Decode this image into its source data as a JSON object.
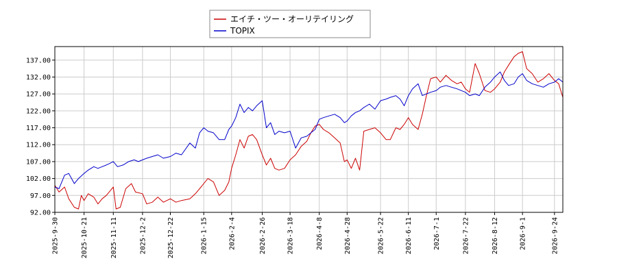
{
  "chart_data": {
    "type": "line",
    "title": "",
    "xlabel": "",
    "ylabel": "",
    "ylim": [
      92.0,
      141.0
    ],
    "y_ticks": [
      "92.00",
      "97.00",
      "102.00",
      "107.00",
      "112.00",
      "117.00",
      "122.00",
      "127.00",
      "132.00",
      "137.00"
    ],
    "x_ticks": [
      "2025-9-30",
      "2025-10-21",
      "2025-11-11",
      "2025-12-2",
      "2025-12-22",
      "2026-1-15",
      "2026-2-4",
      "2026-2-26",
      "2026-3-18",
      "2026-4-8",
      "2026-4-28",
      "2026-5-22",
      "2026-6-11",
      "2026-7-1",
      "2026-7-22",
      "2026-8-12",
      "2026-9-1",
      "2026-9-24"
    ],
    "grid": true,
    "legend_position": "top-center",
    "series": [
      {
        "name": "エイチ・ツー・オーリテイリング",
        "color": "#cc0000",
        "points": [
          [
            "2025-9-30",
            100.0
          ],
          [
            "2025-10-3",
            98.0
          ],
          [
            "2025-10-7",
            99.5
          ],
          [
            "2025-10-10",
            96.0
          ],
          [
            "2025-10-14",
            93.5
          ],
          [
            "2025-10-17",
            93.0
          ],
          [
            "2025-10-19",
            97.0
          ],
          [
            "2025-10-21",
            95.5
          ],
          [
            "2025-10-24",
            97.5
          ],
          [
            "2025-10-28",
            96.5
          ],
          [
            "2025-10-31",
            94.5
          ],
          [
            "2025-11-3",
            96.0
          ],
          [
            "2025-11-6",
            97.0
          ],
          [
            "2025-11-9",
            98.5
          ],
          [
            "2025-11-11",
            99.5
          ],
          [
            "2025-11-13",
            93.0
          ],
          [
            "2025-11-16",
            93.5
          ],
          [
            "2025-11-20",
            99.0
          ],
          [
            "2025-11-24",
            100.5
          ],
          [
            "2025-11-27",
            98.0
          ],
          [
            "2025-12-2",
            97.5
          ],
          [
            "2025-12-5",
            94.5
          ],
          [
            "2025-12-9",
            95.0
          ],
          [
            "2025-12-13",
            96.5
          ],
          [
            "2025-12-17",
            95.0
          ],
          [
            "2025-12-22",
            96.0
          ],
          [
            "2025-12-26",
            95.0
          ],
          [
            "2025-12-30",
            95.5
          ],
          [
            "2026-1-5",
            96.0
          ],
          [
            "2026-1-9",
            97.5
          ],
          [
            "2026-1-13",
            99.5
          ],
          [
            "2026-1-15",
            100.5
          ],
          [
            "2026-1-18",
            102.0
          ],
          [
            "2026-1-22",
            101.0
          ],
          [
            "2026-1-26",
            97.0
          ],
          [
            "2026-1-30",
            98.5
          ],
          [
            "2026-2-2",
            101.0
          ],
          [
            "2026-2-4",
            105.0
          ],
          [
            "2026-2-7",
            109.0
          ],
          [
            "2026-2-10",
            113.5
          ],
          [
            "2026-2-13",
            111.0
          ],
          [
            "2026-2-16",
            114.5
          ],
          [
            "2026-2-19",
            115.0
          ],
          [
            "2026-2-22",
            113.5
          ],
          [
            "2026-2-26",
            109.0
          ],
          [
            "2026-3-1",
            106.0
          ],
          [
            "2026-3-4",
            108.0
          ],
          [
            "2026-3-7",
            105.0
          ],
          [
            "2026-3-10",
            104.5
          ],
          [
            "2026-3-14",
            105.0
          ],
          [
            "2026-3-18",
            107.5
          ],
          [
            "2026-3-22",
            109.0
          ],
          [
            "2026-3-26",
            111.5
          ],
          [
            "2026-3-30",
            113.0
          ],
          [
            "2026-4-2",
            115.5
          ],
          [
            "2026-4-5",
            117.5
          ],
          [
            "2026-4-8",
            118.0
          ],
          [
            "2026-4-11",
            116.5
          ],
          [
            "2026-4-15",
            115.5
          ],
          [
            "2026-4-19",
            114.0
          ],
          [
            "2026-4-23",
            112.5
          ],
          [
            "2026-4-26",
            107.0
          ],
          [
            "2026-4-28",
            107.5
          ],
          [
            "2026-5-1",
            105.0
          ],
          [
            "2026-5-4",
            108.0
          ],
          [
            "2026-5-7",
            104.5
          ],
          [
            "2026-5-10",
            116.0
          ],
          [
            "2026-5-14",
            116.5
          ],
          [
            "2026-5-18",
            117.0
          ],
          [
            "2026-5-22",
            115.5
          ],
          [
            "2026-5-26",
            113.5
          ],
          [
            "2026-5-29",
            113.5
          ],
          [
            "2026-6-2",
            117.0
          ],
          [
            "2026-6-5",
            116.5
          ],
          [
            "2026-6-8",
            118.0
          ],
          [
            "2026-6-11",
            120.0
          ],
          [
            "2026-6-14",
            118.0
          ],
          [
            "2026-6-18",
            116.5
          ],
          [
            "2026-6-21",
            121.0
          ],
          [
            "2026-6-24",
            126.5
          ],
          [
            "2026-6-27",
            131.5
          ],
          [
            "2026-7-1",
            132.0
          ],
          [
            "2026-7-4",
            130.5
          ],
          [
            "2026-7-8",
            132.5
          ],
          [
            "2026-7-12",
            131.0
          ],
          [
            "2026-7-16",
            130.0
          ],
          [
            "2026-7-19",
            130.5
          ],
          [
            "2026-7-22",
            128.5
          ],
          [
            "2026-7-25",
            127.5
          ],
          [
            "2026-7-29",
            136.0
          ],
          [
            "2026-8-1",
            133.0
          ],
          [
            "2026-8-5",
            128.0
          ],
          [
            "2026-8-9",
            127.5
          ],
          [
            "2026-8-12",
            128.5
          ],
          [
            "2026-8-16",
            130.5
          ],
          [
            "2026-8-19",
            133.5
          ],
          [
            "2026-8-22",
            135.5
          ],
          [
            "2026-8-26",
            138.0
          ],
          [
            "2026-8-29",
            139.0
          ],
          [
            "2026-9-1",
            139.5
          ],
          [
            "2026-9-4",
            134.5
          ],
          [
            "2026-9-8",
            133.0
          ],
          [
            "2026-9-12",
            130.5
          ],
          [
            "2026-9-16",
            131.5
          ],
          [
            "2026-9-20",
            133.0
          ],
          [
            "2026-9-24",
            131.0
          ],
          [
            "2026-9-27",
            130.0
          ],
          [
            "2026-9-30",
            126.0
          ]
        ]
      },
      {
        "name": "TOPIX",
        "color": "#0000cc",
        "points": [
          [
            "2025-9-30",
            99.5
          ],
          [
            "2025-10-3",
            99.0
          ],
          [
            "2025-10-7",
            103.0
          ],
          [
            "2025-10-10",
            103.5
          ],
          [
            "2025-10-14",
            100.5
          ],
          [
            "2025-10-17",
            102.0
          ],
          [
            "2025-10-21",
            103.5
          ],
          [
            "2025-10-24",
            104.5
          ],
          [
            "2025-10-28",
            105.5
          ],
          [
            "2025-10-31",
            105.0
          ],
          [
            "2025-11-3",
            105.5
          ],
          [
            "2025-11-6",
            106.0
          ],
          [
            "2025-11-11",
            107.0
          ],
          [
            "2025-11-14",
            105.5
          ],
          [
            "2025-11-18",
            106.0
          ],
          [
            "2025-11-22",
            107.0
          ],
          [
            "2025-11-26",
            107.5
          ],
          [
            "2025-11-29",
            107.0
          ],
          [
            "2025-12-2",
            107.5
          ],
          [
            "2025-12-5",
            108.0
          ],
          [
            "2025-12-9",
            108.5
          ],
          [
            "2025-12-13",
            109.0
          ],
          [
            "2025-12-17",
            108.0
          ],
          [
            "2025-12-22",
            108.5
          ],
          [
            "2025-12-26",
            109.5
          ],
          [
            "2025-12-30",
            109.0
          ],
          [
            "2026-1-5",
            112.5
          ],
          [
            "2026-1-9",
            111.0
          ],
          [
            "2026-1-12",
            115.5
          ],
          [
            "2026-1-15",
            117.0
          ],
          [
            "2026-1-18",
            116.0
          ],
          [
            "2026-1-22",
            115.5
          ],
          [
            "2026-1-26",
            113.5
          ],
          [
            "2026-1-30",
            113.5
          ],
          [
            "2026-2-2",
            116.5
          ],
          [
            "2026-2-4",
            117.5
          ],
          [
            "2026-2-7",
            120.0
          ],
          [
            "2026-2-10",
            124.0
          ],
          [
            "2026-2-13",
            121.5
          ],
          [
            "2026-2-16",
            123.0
          ],
          [
            "2026-2-19",
            122.0
          ],
          [
            "2026-2-22",
            123.5
          ],
          [
            "2026-2-26",
            125.0
          ],
          [
            "2026-3-1",
            117.0
          ],
          [
            "2026-3-4",
            118.5
          ],
          [
            "2026-3-7",
            115.0
          ],
          [
            "2026-3-10",
            116.0
          ],
          [
            "2026-3-14",
            115.5
          ],
          [
            "2026-3-18",
            116.0
          ],
          [
            "2026-3-22",
            111.0
          ],
          [
            "2026-3-26",
            114.0
          ],
          [
            "2026-3-30",
            114.5
          ],
          [
            "2026-4-2",
            115.5
          ],
          [
            "2026-4-5",
            116.5
          ],
          [
            "2026-4-8",
            119.5
          ],
          [
            "2026-4-11",
            120.0
          ],
          [
            "2026-4-15",
            120.5
          ],
          [
            "2026-4-19",
            121.0
          ],
          [
            "2026-4-23",
            120.0
          ],
          [
            "2026-4-26",
            118.5
          ],
          [
            "2026-4-28",
            119.0
          ],
          [
            "2026-5-1",
            120.5
          ],
          [
            "2026-5-4",
            121.5
          ],
          [
            "2026-5-7",
            122.0
          ],
          [
            "2026-5-10",
            123.0
          ],
          [
            "2026-5-14",
            124.0
          ],
          [
            "2026-5-18",
            122.5
          ],
          [
            "2026-5-22",
            125.0
          ],
          [
            "2026-5-26",
            125.5
          ],
          [
            "2026-5-29",
            126.0
          ],
          [
            "2026-6-2",
            126.5
          ],
          [
            "2026-6-5",
            125.5
          ],
          [
            "2026-6-8",
            123.5
          ],
          [
            "2026-6-11",
            126.5
          ],
          [
            "2026-6-14",
            128.5
          ],
          [
            "2026-6-18",
            130.0
          ],
          [
            "2026-6-21",
            126.5
          ],
          [
            "2026-6-24",
            127.0
          ],
          [
            "2026-6-27",
            127.5
          ],
          [
            "2026-7-1",
            128.0
          ],
          [
            "2026-7-4",
            129.0
          ],
          [
            "2026-7-8",
            129.5
          ],
          [
            "2026-7-12",
            129.0
          ],
          [
            "2026-7-16",
            128.5
          ],
          [
            "2026-7-19",
            128.0
          ],
          [
            "2026-7-22",
            127.5
          ],
          [
            "2026-7-25",
            126.5
          ],
          [
            "2026-7-29",
            127.0
          ],
          [
            "2026-8-1",
            126.5
          ],
          [
            "2026-8-5",
            129.0
          ],
          [
            "2026-8-9",
            130.5
          ],
          [
            "2026-8-12",
            132.0
          ],
          [
            "2026-8-16",
            133.5
          ],
          [
            "2026-8-19",
            131.0
          ],
          [
            "2026-8-22",
            129.5
          ],
          [
            "2026-8-26",
            130.0
          ],
          [
            "2026-8-29",
            132.0
          ],
          [
            "2026-9-1",
            133.0
          ],
          [
            "2026-9-4",
            131.0
          ],
          [
            "2026-9-8",
            130.0
          ],
          [
            "2026-9-12",
            129.5
          ],
          [
            "2026-9-16",
            129.0
          ],
          [
            "2026-9-20",
            130.0
          ],
          [
            "2026-9-24",
            130.5
          ],
          [
            "2026-9-27",
            131.5
          ],
          [
            "2026-9-30",
            130.5
          ]
        ]
      }
    ]
  }
}
